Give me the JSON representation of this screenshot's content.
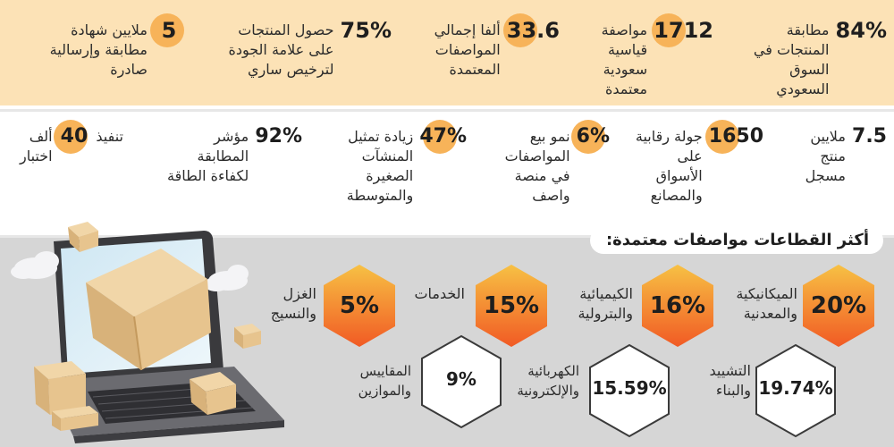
{
  "row1": [
    {
      "value": "84%",
      "label": "مطابقة\nالمنتجات في\nالسوق\nالسعودي"
    },
    {
      "value": "1712",
      "label": "مواصفة\nقياسية\nسعودية\nمعتمدة"
    },
    {
      "value": "33.6",
      "label": "ألفا إجمالي\nالمواصفات\nالمعتمدة"
    },
    {
      "value": "75%",
      "label": "حصول المنتجات\nعلى علامة الجودة\nلترخيص ساري"
    },
    {
      "value": "5",
      "label": "ملايين شهادة\nمطابقة وإرسالية\nصادرة"
    }
  ],
  "row2": [
    {
      "value": "7.5",
      "label": "ملايين\nمنتج\nمسجل"
    },
    {
      "value": "1650",
      "label": "جولة رقابية\nعلى\nالأسواق\nوالمصانع"
    },
    {
      "value": "6%",
      "label": "نمو بيع\nالمواصفات\nفي منصة\nواصف"
    },
    {
      "value": "47%",
      "label": "زيادة تمثيل\nالمنشآت\nالصغيرة\nوالمتوسطة"
    },
    {
      "value": "92%",
      "label": "مؤشر\nالمطابقة\nلكفاءة الطاقة"
    },
    {
      "value": "40",
      "label_before": "تنفيذ",
      "label_after": "ألف\nاختبار"
    }
  ],
  "sectors_title": "أكثر القطاعات مواصفات معتمدة:",
  "sectors_top": [
    {
      "value": "20%",
      "label": "الميكانيكية\nوالمعدنية"
    },
    {
      "value": "16%",
      "label": "الكيميائية\nوالبترولية"
    },
    {
      "value": "15%",
      "label": "الخدمات"
    },
    {
      "value": "5%",
      "label": "الغزل\nوالنسيج"
    }
  ],
  "sectors_bottom": [
    {
      "value": "19.74%",
      "label": "التشييد\nوالبناء"
    },
    {
      "value": "15.59%",
      "label": "الكهربائية\nوالإلكترونية"
    },
    {
      "value": "9%",
      "label": "المقاييس\nوالموازين"
    }
  ],
  "colors": {
    "band_top": "#fce2b6",
    "circle": "#f7b359",
    "band_bottom": "#d6d6d6",
    "hex_top": "#f7c144",
    "hex_bottom": "#f15a24"
  }
}
